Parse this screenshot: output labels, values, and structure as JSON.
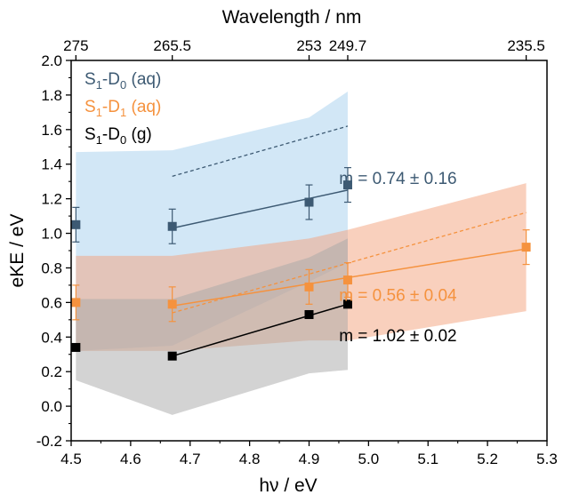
{
  "chart_data": {
    "type": "scatter",
    "title": "",
    "xlabel": "hν / eV",
    "ylabel": "eKE / eV",
    "top_xlabel": "Wavelength / nm",
    "xlim": [
      4.5,
      5.3
    ],
    "ylim": [
      -0.2,
      2.0
    ],
    "xticks": [
      4.5,
      4.6,
      4.7,
      4.8,
      4.9,
      5.0,
      5.1,
      5.2,
      5.3
    ],
    "xtick_labels": [
      "4.5",
      "4.6",
      "4.7",
      "4.8",
      "4.9",
      "5.0",
      "5.1",
      "5.2",
      "5.3"
    ],
    "yticks": [
      -0.2,
      0.0,
      0.2,
      0.4,
      0.6,
      0.8,
      1.0,
      1.2,
      1.4,
      1.6,
      1.8,
      2.0
    ],
    "ytick_labels": [
      "-0.2",
      "0.0",
      "0.2",
      "0.4",
      "0.6",
      "0.8",
      "1.0",
      "1.2",
      "1.4",
      "1.6",
      "1.8",
      "2.0"
    ],
    "top_ticks": [
      {
        "label": "275",
        "x": 4.508
      },
      {
        "label": "265.5",
        "x": 4.67
      },
      {
        "label": "253",
        "x": 4.9
      },
      {
        "label": "249.7",
        "x": 4.965
      },
      {
        "label": "235.5",
        "x": 5.265
      }
    ],
    "legend_position": "top-left",
    "legend": [
      {
        "main": "S",
        "sub1": "1",
        "mid": "-D",
        "sub2": "0",
        "tail": " (aq)",
        "color": "#3d5a73"
      },
      {
        "main": "S",
        "sub1": "1",
        "mid": "-D",
        "sub2": "1",
        "tail": " (aq)",
        "color": "#f5923e"
      },
      {
        "main": "S",
        "sub1": "1",
        "mid": "-D",
        "sub2": "0",
        "tail": " (g)",
        "color": "#000000"
      }
    ],
    "series": [
      {
        "key": "s1d0_aq",
        "color": "#3d5a73",
        "band_color": "#c3dff3",
        "band_opacity": 0.75,
        "x": [
          4.508,
          4.67,
          4.9,
          4.965
        ],
        "y": [
          1.05,
          1.04,
          1.18,
          1.28
        ],
        "yerr": [
          0.1,
          0.1,
          0.1,
          0.1
        ],
        "band_upper": [
          1.47,
          1.48,
          1.67,
          1.82
        ],
        "band_lower": [
          0.32,
          0.35,
          0.72,
          0.83
        ],
        "fit_x": [
          4.67,
          4.965
        ],
        "fit_y": [
          1.03,
          1.25
        ],
        "dashed_x": [
          4.67,
          4.965
        ],
        "dashed_y": [
          1.33,
          1.62
        ],
        "annotation": "m = 0.74 ± 0.16",
        "annotation_at": [
          5.07,
          1.285
        ]
      },
      {
        "key": "s1d1_aq",
        "color": "#f5923e",
        "band_color": "#f4a27c",
        "band_opacity": 0.5,
        "x": [
          4.508,
          4.67,
          4.9,
          4.965,
          5.265
        ],
        "y": [
          0.6,
          0.59,
          0.69,
          0.73,
          0.92
        ],
        "yerr": [
          0.1,
          0.1,
          0.1,
          0.1,
          0.1
        ],
        "band_upper": [
          0.87,
          0.87,
          0.97,
          1.02,
          1.29
        ],
        "band_lower": [
          0.32,
          0.32,
          0.38,
          0.38,
          0.55
        ],
        "fit_x": [
          4.67,
          5.265
        ],
        "fit_y": [
          0.58,
          0.91
        ],
        "dashed_x": [
          4.67,
          5.265
        ],
        "dashed_y": [
          0.54,
          1.12
        ],
        "annotation": "m = 0.56 ± 0.04",
        "annotation_at": [
          5.07,
          0.61
        ]
      },
      {
        "key": "s1d0_g",
        "color": "#000000",
        "band_color": "#a8a8a8",
        "band_opacity": 0.5,
        "x": [
          4.508,
          4.67,
          4.9,
          4.965
        ],
        "y": [
          0.34,
          0.29,
          0.53,
          0.59
        ],
        "yerr": [
          0,
          0,
          0,
          0
        ],
        "band_upper": [
          0.62,
          0.62,
          0.86,
          0.97
        ],
        "band_lower": [
          0.15,
          -0.05,
          0.19,
          0.21
        ],
        "fit_x": [
          4.67,
          4.965
        ],
        "fit_y": [
          0.29,
          0.59
        ],
        "annotation": "m = 1.02 ± 0.02",
        "annotation_at": [
          5.07,
          0.375
        ]
      }
    ],
    "grid": false
  }
}
